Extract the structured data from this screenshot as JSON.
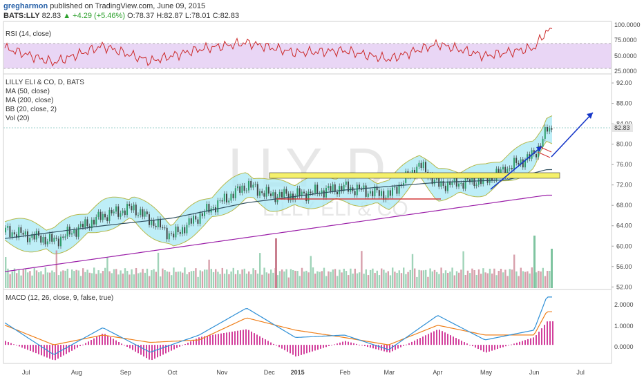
{
  "header": {
    "author": "gregharmon",
    "published": "published on TradingView.com, June 09, 2015",
    "symbol": "BATS:LLY",
    "last": "82.83",
    "change": "▲ +4.29 (+5.46%)",
    "ohlc": "O:78.37  H:82.87  L:78.01  C:82.83"
  },
  "panels": {
    "rsi_label": "RSI (14, close)",
    "price_title": "LILLY ELI & CO, D, BATS",
    "price_legend": [
      "MA (50, close)",
      "MA (200, close)",
      "BB (20, close, 2)",
      "Vol (20)"
    ],
    "macd_label": "MACD (12, 26, close, 9, false, true)",
    "watermark_big": "LLY, D",
    "watermark_small": "LILLY ELI & CO",
    "price_badge": "82.83"
  },
  "colors": {
    "price_up": "#2e9e6b",
    "price_down": "#444444",
    "rsi_line": "#cc2a2a",
    "rsi_band": "#e9d6f5",
    "bb_fill": "#aeeaf5",
    "bb_line": "#b5b84a",
    "ma50": "#2f4f5f",
    "ma200": "#9b1fa8",
    "macd_line": "#2e8fd6",
    "signal_line": "#ef7f1a",
    "histogram": "#d2409c",
    "arrow": "#1536c8",
    "zone": "#f5f06b",
    "support": "#d43a3a",
    "channel": "#d43a3a"
  },
  "chart_data": [
    {
      "type": "line",
      "title": "RSI (14, close)",
      "y_ticks": [
        "100.0000",
        "75.0000",
        "50.0000",
        "25.0000"
      ],
      "ylim": [
        25,
        100
      ],
      "levels": [
        30,
        70
      ],
      "series": [
        {
          "name": "RSI",
          "x": [
            "2014-07",
            "2014-08",
            "2014-09",
            "2014-10",
            "2014-11",
            "2014-12",
            "2015-01",
            "2015-02",
            "2015-03",
            "2015-04",
            "2015-05",
            "2015-06",
            "2015-06-09"
          ],
          "values": [
            62,
            40,
            65,
            42,
            60,
            70,
            55,
            58,
            45,
            68,
            50,
            62,
            88
          ]
        }
      ]
    },
    {
      "type": "line",
      "title": "LILLY ELI & CO, D, BATS",
      "y_ticks": [
        "92.00",
        "88.00",
        "84.00",
        "80.00",
        "76.00",
        "72.00",
        "68.00",
        "64.00",
        "60.00",
        "56.00",
        "52.00"
      ],
      "ylim": [
        51.5,
        93.5
      ],
      "x_ticks": [
        "Jul",
        "Aug",
        "Sep",
        "Oct",
        "Nov",
        "Dec",
        "2015",
        "Feb",
        "Mar",
        "Apr",
        "May",
        "Jun",
        "Jul"
      ],
      "series": [
        {
          "name": "Close",
          "x": [
            "2014-07-01",
            "2014-08-01",
            "2014-09-01",
            "2014-09-20",
            "2014-10-01",
            "2014-10-15",
            "2014-11-01",
            "2014-12-01",
            "2014-12-15",
            "2015-01-01",
            "2015-02-01",
            "2015-03-01",
            "2015-03-20",
            "2015-04-01",
            "2015-05-01",
            "2015-06-01",
            "2015-06-09"
          ],
          "values": [
            63,
            61,
            66,
            67.5,
            65,
            62,
            66,
            72,
            70,
            70,
            71.5,
            70,
            76,
            72,
            73,
            78,
            82.83
          ]
        },
        {
          "name": "MA (50, close)",
          "x": [
            "2014-07-01",
            "2014-09-01",
            "2014-10-15",
            "2014-12-01",
            "2015-02-01",
            "2015-04-01",
            "2015-05-15",
            "2015-06-09"
          ],
          "values": [
            61.5,
            64,
            65.5,
            68.5,
            71,
            72.5,
            73,
            75
          ]
        },
        {
          "name": "MA (200, close)",
          "x": [
            "2014-07-01",
            "2015-06-09"
          ],
          "values": [
            55,
            70
          ]
        }
      ],
      "annotations": {
        "zone": [
          72.8,
          73.8
        ],
        "support_line": 69,
        "last_price": 82.83,
        "arrows": [
          "May-Jun trend",
          "projection Jun-Jul"
        ]
      }
    },
    {
      "type": "bar",
      "title": "Vol (20)",
      "note": "volume histogram overlaid at bottom of price panel"
    },
    {
      "type": "line",
      "title": "MACD (12, 26, close, 9, false, true)",
      "y_ticks": [
        "2.0000",
        "1.0000",
        "0.0000"
      ],
      "ylim": [
        -0.7,
        2.2
      ],
      "series": [
        {
          "name": "MACD",
          "x": [
            "2014-07",
            "2014-08",
            "2014-09",
            "2014-10",
            "2014-11",
            "2014-12",
            "2015-01",
            "2015-02",
            "2015-03",
            "2015-04",
            "2015-05",
            "2015-06",
            "2015-06-09"
          ],
          "values": [
            0.9,
            -0.4,
            0.7,
            -0.3,
            0.4,
            1.5,
            0.3,
            0.4,
            -0.2,
            1.2,
            0.2,
            0.6,
            1.95
          ]
        },
        {
          "name": "Signal",
          "x": [
            "2014-07",
            "2014-08",
            "2014-09",
            "2014-10",
            "2014-11",
            "2014-12",
            "2015-01",
            "2015-02",
            "2015-03",
            "2015-04",
            "2015-05",
            "2015-06",
            "2015-06-09"
          ],
          "values": [
            0.8,
            0.0,
            0.4,
            0.1,
            0.2,
            1.1,
            0.6,
            0.3,
            0.0,
            0.8,
            0.4,
            0.4,
            1.35
          ]
        }
      ]
    }
  ]
}
